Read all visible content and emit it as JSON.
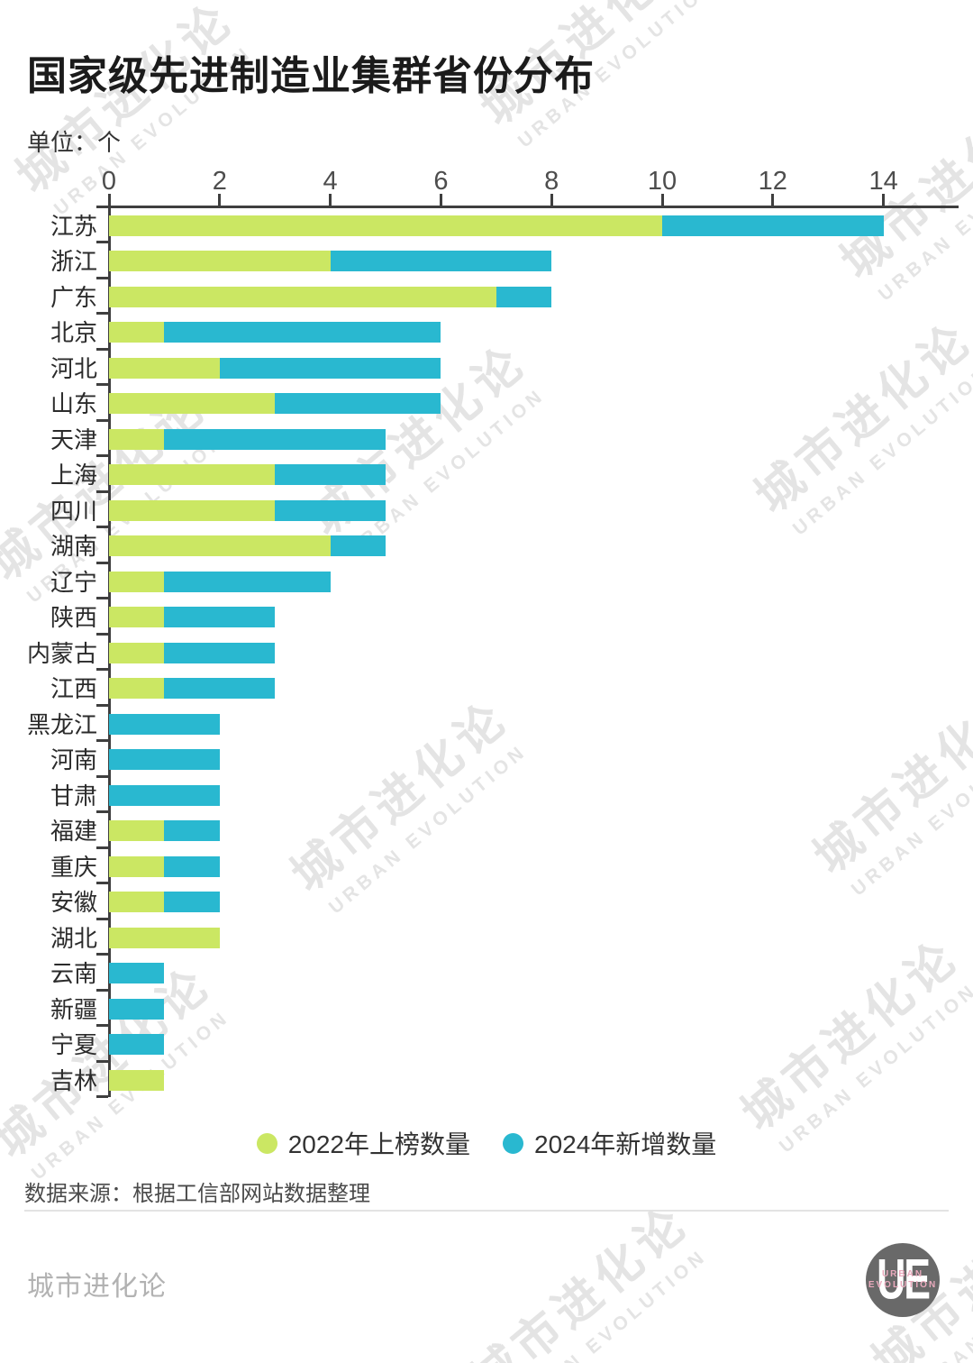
{
  "title": "国家级先进制造业集群省份分布",
  "unit_label": "单位：个",
  "chart_data": {
    "type": "bar",
    "orientation": "horizontal",
    "stacked": true,
    "title": "国家级先进制造业集群省份分布",
    "unit": "个",
    "categories": [
      "江苏",
      "浙江",
      "广东",
      "北京",
      "河北",
      "山东",
      "天津",
      "上海",
      "四川",
      "湖南",
      "辽宁",
      "陕西",
      "内蒙古",
      "江西",
      "黑龙江",
      "河南",
      "甘肃",
      "福建",
      "重庆",
      "安徽",
      "湖北",
      "云南",
      "新疆",
      "宁夏",
      "吉林"
    ],
    "series": [
      {
        "name": "2022年上榜数量",
        "color": "#cbe763",
        "values": [
          10,
          4,
          7,
          1,
          2,
          3,
          1,
          3,
          3,
          4,
          1,
          1,
          1,
          1,
          0,
          0,
          0,
          1,
          1,
          1,
          2,
          0,
          0,
          0,
          1
        ]
      },
      {
        "name": "2024年新增数量",
        "color": "#29b8d0",
        "values": [
          4,
          4,
          1,
          5,
          4,
          3,
          4,
          2,
          2,
          1,
          3,
          2,
          2,
          2,
          2,
          2,
          2,
          1,
          1,
          1,
          0,
          1,
          1,
          1,
          0
        ]
      }
    ],
    "x_ticks": [
      0,
      2,
      4,
      6,
      8,
      10,
      12,
      14
    ],
    "xlim": [
      0,
      15.35
    ],
    "grid": false,
    "legend_position": "bottom"
  },
  "legend": {
    "items": [
      {
        "label": "2022年上榜数量",
        "color": "#cbe763"
      },
      {
        "label": "2024年新增数量",
        "color": "#29b8d0"
      }
    ]
  },
  "source": "数据来源：根据工信部网站数据整理",
  "footer": {
    "brand": "城市进化论",
    "logo_monogram": "UE",
    "logo_subtext": "URBAN EVOLUTION"
  },
  "watermark": {
    "cn": "城市进化论",
    "en": "URBAN EVOLUTION"
  },
  "colors": {
    "series_2022": "#cbe763",
    "series_2024": "#29b8d0",
    "axis": "#3f3f3f",
    "watermark": "#e4e4e4"
  }
}
